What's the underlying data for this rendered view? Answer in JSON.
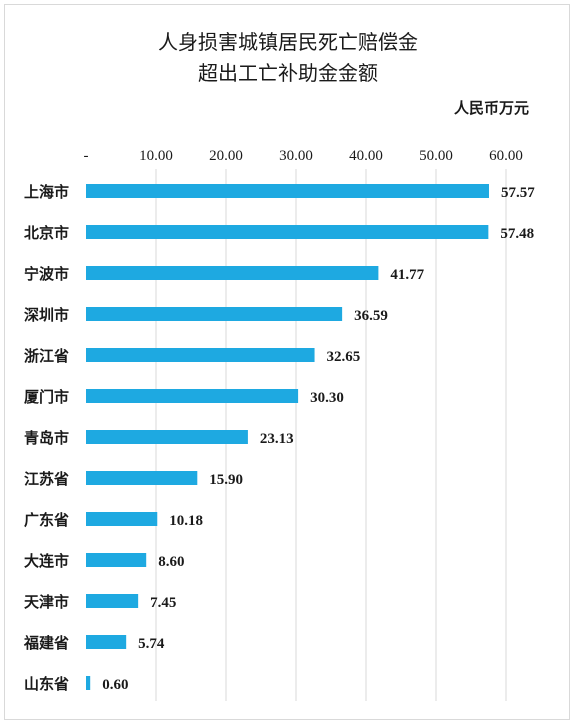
{
  "chart_data": {
    "type": "bar",
    "orientation": "horizontal",
    "title_lines": [
      "人身损害城镇居民死亡赔偿金",
      "超出工亡补助金金额"
    ],
    "unit_label": "人民币万元",
    "x_ticks": [
      "-",
      "10.00",
      "20.00",
      "30.00",
      "40.00",
      "50.00",
      "60.00"
    ],
    "xlim": [
      0,
      65
    ],
    "axis_position": "top",
    "grid": true,
    "bar_color": "#1ea9e1",
    "categories": [
      "上海市",
      "北京市",
      "宁波市",
      "深圳市",
      "浙江省",
      "厦门市",
      "青岛市",
      "江苏省",
      "广东省",
      "大连市",
      "天津市",
      "福建省",
      "山东省"
    ],
    "values": [
      57.57,
      57.48,
      41.77,
      36.59,
      32.65,
      30.3,
      23.13,
      15.9,
      10.18,
      8.6,
      7.45,
      5.74,
      0.6
    ],
    "value_labels": [
      "57.57",
      "57.48",
      "41.77",
      "36.59",
      "32.65",
      "30.30",
      "23.13",
      "15.90",
      "10.18",
      "8.60",
      "7.45",
      "5.74",
      "0.60"
    ]
  }
}
